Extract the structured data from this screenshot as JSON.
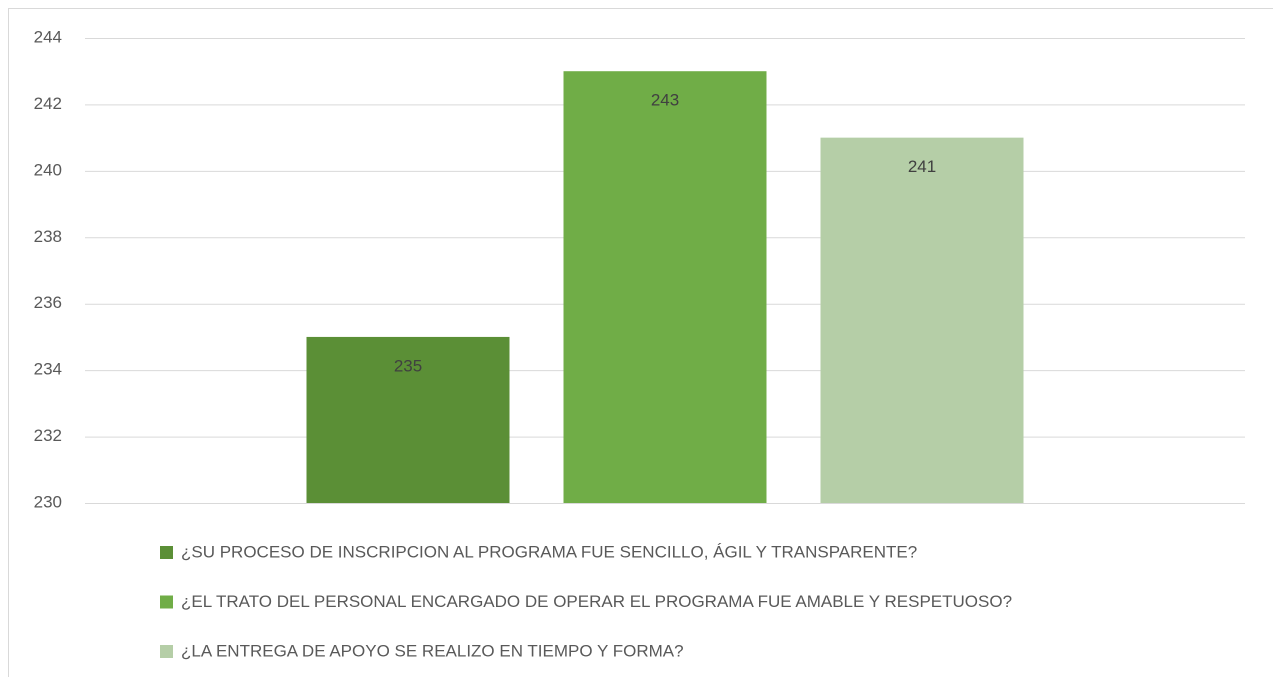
{
  "chart_data": {
    "type": "bar",
    "categories": [
      null
    ],
    "series": [
      {
        "name": "¿SU PROCESO DE INSCRIPCION AL PROGRAMA FUE SENCILLO, ÁGIL Y TRANSPARENTE?",
        "color": "#5b8f36",
        "values": [
          235
        ]
      },
      {
        "name": "¿EL TRATO DEL PERSONAL ENCARGADO DE OPERAR EL PROGRAMA FUE AMABLE Y RESPETUOSO?",
        "color": "#70ad47",
        "values": [
          243
        ]
      },
      {
        "name": "¿LA ENTREGA DE APOYO SE REALIZO EN TIEMPO Y FORMA?",
        "color": "#b5cea7",
        "values": [
          241
        ]
      }
    ],
    "ylim": [
      230,
      244
    ],
    "yticks": [
      230,
      232,
      234,
      236,
      238,
      240,
      242,
      244
    ],
    "grid": true,
    "data_labels": true,
    "legend": "bottom"
  }
}
